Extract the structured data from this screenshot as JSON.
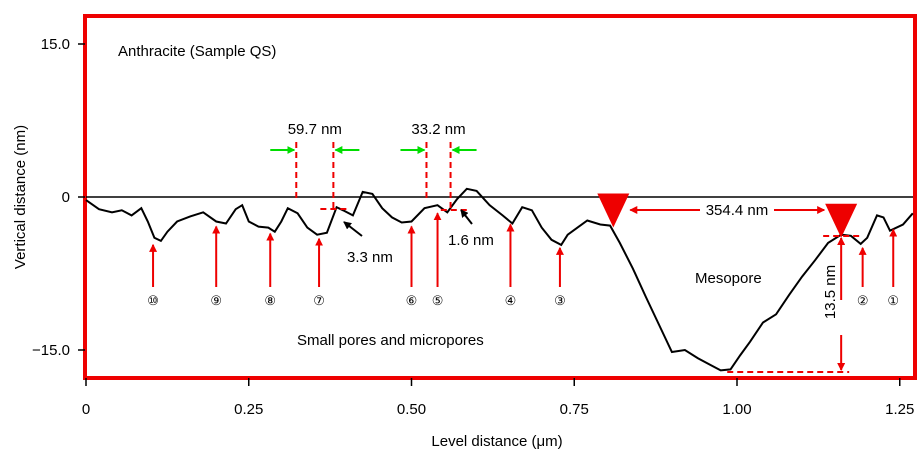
{
  "chart_data": {
    "type": "line",
    "title": "Anthracite (Sample QS)",
    "xlabel": "Level distance (μm)",
    "ylabel": "Vertical distance (nm)",
    "xlim": [
      0,
      1.27
    ],
    "ylim": [
      -18,
      16.5
    ],
    "x_ticks": [
      0,
      0.25,
      0.5,
      0.75,
      1.0,
      1.25
    ],
    "x_tick_labels": [
      "0",
      "0.25",
      "0.50",
      "0.75",
      "1.00",
      "1.25"
    ],
    "y_ticks": [
      15,
      0,
      -15
    ],
    "y_tick_labels": [
      "15.0",
      "0",
      "−15.0"
    ],
    "colors": {
      "frame": "#ee0000",
      "profile": "#000000",
      "marker": "#ee0000",
      "width_arrow": "#00dd00"
    },
    "baseline_y": 0,
    "profile": [
      [
        0.0,
        -0.3
      ],
      [
        0.02,
        -1.2
      ],
      [
        0.04,
        -1.5
      ],
      [
        0.055,
        -1.3
      ],
      [
        0.07,
        -1.8
      ],
      [
        0.085,
        -1.1
      ],
      [
        0.095,
        -2.4
      ],
      [
        0.105,
        -4.0
      ],
      [
        0.115,
        -4.3
      ],
      [
        0.125,
        -3.4
      ],
      [
        0.14,
        -2.4
      ],
      [
        0.16,
        -1.9
      ],
      [
        0.18,
        -1.5
      ],
      [
        0.2,
        -2.4
      ],
      [
        0.215,
        -2.6
      ],
      [
        0.23,
        -1.2
      ],
      [
        0.24,
        -0.8
      ],
      [
        0.25,
        -2.4
      ],
      [
        0.265,
        -2.9
      ],
      [
        0.28,
        -3.0
      ],
      [
        0.29,
        -3.4
      ],
      [
        0.3,
        -2.4
      ],
      [
        0.31,
        -1.1
      ],
      [
        0.325,
        -1.6
      ],
      [
        0.34,
        -3.0
      ],
      [
        0.355,
        -3.7
      ],
      [
        0.37,
        -3.5
      ],
      [
        0.385,
        -1.0
      ],
      [
        0.395,
        -1.3
      ],
      [
        0.41,
        -1.8
      ],
      [
        0.425,
        0.5
      ],
      [
        0.44,
        0.3
      ],
      [
        0.455,
        -1.1
      ],
      [
        0.47,
        -2.0
      ],
      [
        0.485,
        -2.5
      ],
      [
        0.5,
        -2.4
      ],
      [
        0.52,
        -1.1
      ],
      [
        0.54,
        -0.8
      ],
      [
        0.555,
        -1.5
      ],
      [
        0.57,
        -0.2
      ],
      [
        0.585,
        0.8
      ],
      [
        0.6,
        0.6
      ],
      [
        0.62,
        -0.8
      ],
      [
        0.64,
        -1.8
      ],
      [
        0.655,
        -2.6
      ],
      [
        0.67,
        -1.0
      ],
      [
        0.685,
        -1.3
      ],
      [
        0.7,
        -3.0
      ],
      [
        0.715,
        -4.2
      ],
      [
        0.73,
        -4.7
      ],
      [
        0.74,
        -3.7
      ],
      [
        0.755,
        -3.0
      ],
      [
        0.77,
        -2.3
      ],
      [
        0.79,
        -2.7
      ],
      [
        0.805,
        -2.8
      ],
      [
        0.82,
        -4.5
      ],
      [
        0.84,
        -7.0
      ],
      [
        0.86,
        -9.8
      ],
      [
        0.88,
        -12.5
      ],
      [
        0.9,
        -15.2
      ],
      [
        0.92,
        -15.0
      ],
      [
        0.94,
        -15.8
      ],
      [
        0.96,
        -16.5
      ],
      [
        0.975,
        -17.0
      ],
      [
        0.99,
        -16.9
      ],
      [
        1.005,
        -15.5
      ],
      [
        1.02,
        -14.2
      ],
      [
        1.04,
        -12.3
      ],
      [
        1.06,
        -11.5
      ],
      [
        1.08,
        -9.6
      ],
      [
        1.1,
        -7.8
      ],
      [
        1.12,
        -6.2
      ],
      [
        1.14,
        -4.5
      ],
      [
        1.16,
        -3.7
      ],
      [
        1.175,
        -3.8
      ],
      [
        1.19,
        -4.6
      ],
      [
        1.2,
        -4.0
      ],
      [
        1.215,
        -1.8
      ],
      [
        1.225,
        -2.0
      ],
      [
        1.235,
        -3.3
      ],
      [
        1.255,
        -2.7
      ],
      [
        1.27,
        -1.6
      ]
    ],
    "markers": [
      {
        "id": "m1",
        "x": 0.81,
        "y": -2.8
      },
      {
        "id": "m2",
        "x": 1.16,
        "y": -3.8
      }
    ],
    "pores": [
      {
        "label": "⑩",
        "x": 0.103,
        "y": -4.3
      },
      {
        "label": "⑨",
        "x": 0.2,
        "y": -2.5
      },
      {
        "label": "⑧",
        "x": 0.283,
        "y": -3.2
      },
      {
        "label": "⑦",
        "x": 0.358,
        "y": -3.7
      },
      {
        "label": "⑥",
        "x": 0.5,
        "y": -2.5
      },
      {
        "label": "⑤",
        "x": 0.54,
        "y": -1.2
      },
      {
        "label": "④",
        "x": 0.652,
        "y": -2.3
      },
      {
        "label": "③",
        "x": 0.728,
        "y": -4.6
      },
      {
        "label": "②",
        "x": 1.193,
        "y": -4.6
      },
      {
        "label": "①",
        "x": 1.24,
        "y": -2.8
      }
    ],
    "widths": [
      {
        "label": "59.7 nm",
        "x1": 0.323,
        "x2": 0.38
      },
      {
        "label": "33.2 nm",
        "x1": 0.523,
        "x2": 0.56
      }
    ],
    "depths": [
      {
        "label": "3.3 nm",
        "x": 0.392
      },
      {
        "label": "1.6 nm",
        "x": 0.58
      }
    ],
    "spacing": {
      "label": "354.4 nm"
    },
    "depth_mesopore": {
      "label": "13.5 nm"
    },
    "annotations": {
      "mesopore": "Mesopore",
      "small_pores": "Small pores and micropores"
    }
  }
}
